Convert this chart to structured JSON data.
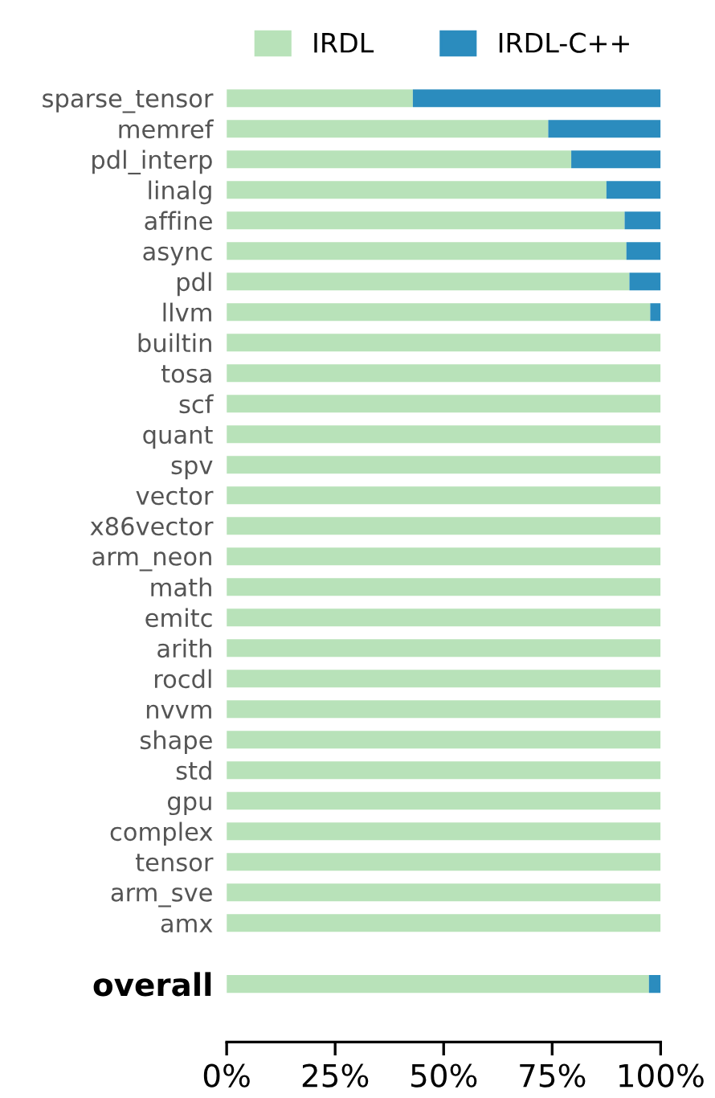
{
  "chart_data": {
    "type": "bar",
    "orientation": "horizontal",
    "stacked": true,
    "categories": [
      "sparse_tensor",
      "memref",
      "pdl_interp",
      "linalg",
      "affine",
      "async",
      "pdl",
      "llvm",
      "builtin",
      "tosa",
      "scf",
      "quant",
      "spv",
      "vector",
      "x86vector",
      "arm_neon",
      "math",
      "emitc",
      "arith",
      "rocdl",
      "nvvm",
      "shape",
      "std",
      "gpu",
      "complex",
      "tensor",
      "arm_sve",
      "amx",
      null,
      "overall"
    ],
    "series": [
      {
        "name": "IRDL",
        "color": "#b8e2b9",
        "values": [
          42.9,
          74.1,
          79.4,
          87.5,
          91.7,
          92.1,
          92.8,
          97.6,
          100,
          100,
          100,
          100,
          100,
          100,
          100,
          100,
          100,
          100,
          100,
          100,
          100,
          100,
          100,
          100,
          100,
          100,
          100,
          100,
          null,
          97.3
        ]
      },
      {
        "name": "IRDL-C++",
        "color": "#2b8cbe",
        "values": [
          57.1,
          25.9,
          20.6,
          12.5,
          8.3,
          7.9,
          7.2,
          2.4,
          0,
          0,
          0,
          0,
          0,
          0,
          0,
          0,
          0,
          0,
          0,
          0,
          0,
          0,
          0,
          0,
          0,
          0,
          0,
          0,
          null,
          2.7
        ]
      }
    ],
    "xlim": [
      0,
      100
    ],
    "xticks": [
      {
        "value": 0,
        "label": "0%"
      },
      {
        "value": 25,
        "label": "25%"
      },
      {
        "value": 50,
        "label": "50%"
      },
      {
        "value": 75,
        "label": "75%"
      },
      {
        "value": 100,
        "label": "100%"
      }
    ],
    "grid": false,
    "legend": "top"
  }
}
